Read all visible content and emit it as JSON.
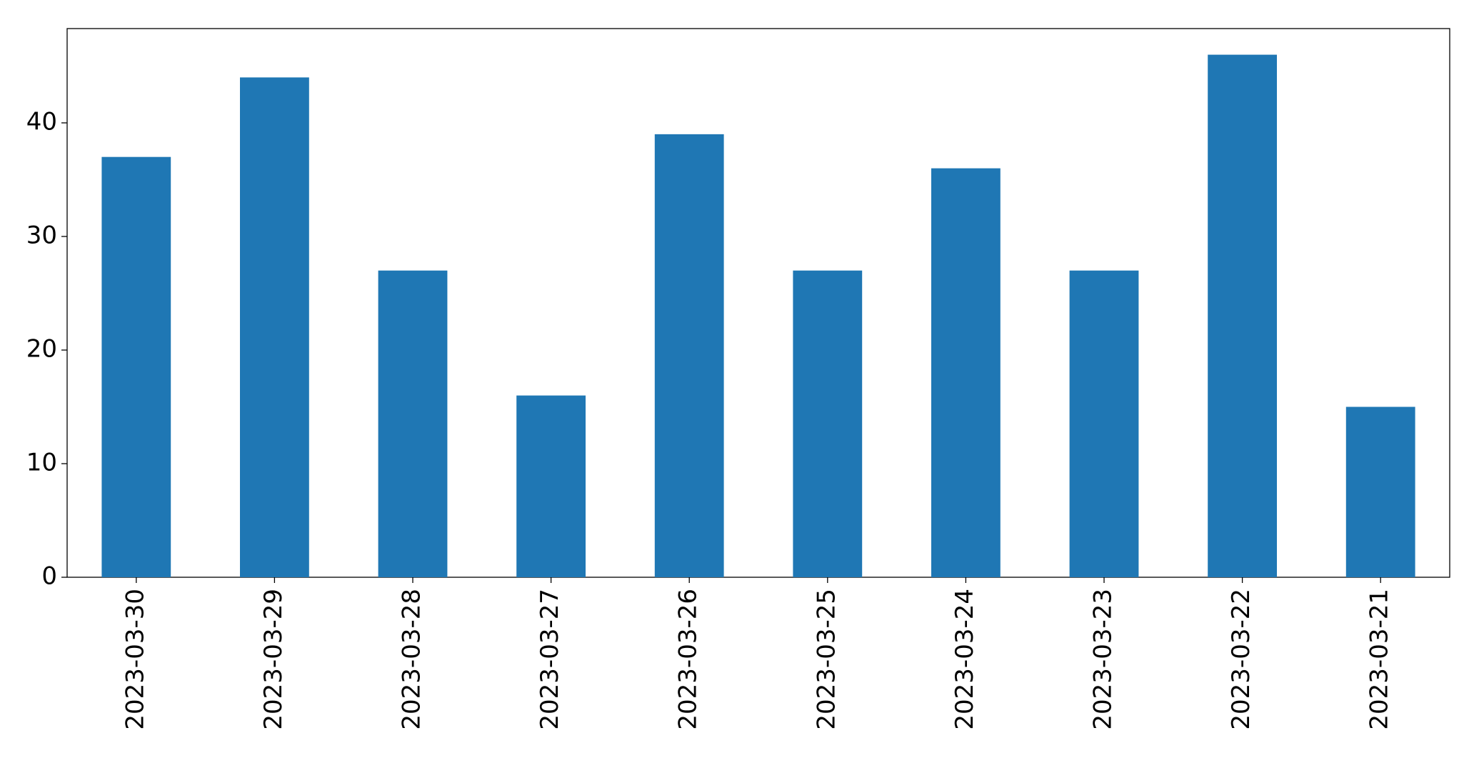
{
  "chart_data": {
    "type": "bar",
    "categories": [
      "2023-03-30",
      "2023-03-29",
      "2023-03-28",
      "2023-03-27",
      "2023-03-26",
      "2023-03-25",
      "2023-03-24",
      "2023-03-23",
      "2023-03-22",
      "2023-03-21"
    ],
    "values": [
      37,
      44,
      27,
      16,
      39,
      27,
      36,
      27,
      46,
      15
    ],
    "color": "#1f77b4",
    "ylim": [
      0,
      48.3
    ],
    "yticks": [
      0,
      10,
      20,
      30,
      40
    ],
    "grid": false
  }
}
